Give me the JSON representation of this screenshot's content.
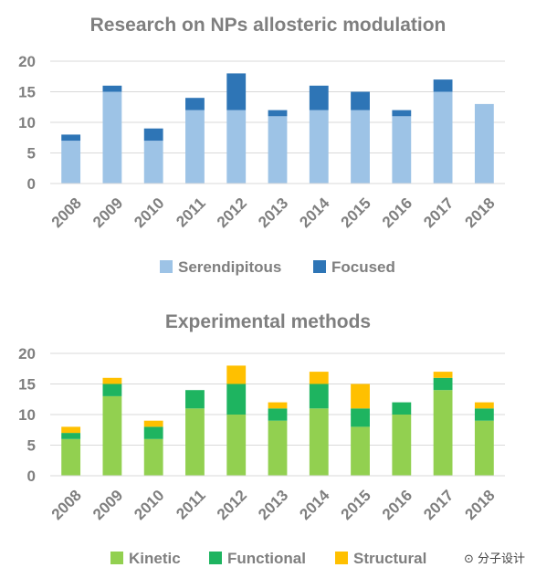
{
  "chart_data": [
    {
      "type": "bar",
      "stacked": true,
      "title": "Research on NPs allosteric modulation",
      "categories": [
        "2008",
        "2009",
        "2010",
        "2011",
        "2012",
        "2013",
        "2014",
        "2015",
        "2016",
        "2017",
        "2018"
      ],
      "series": [
        {
          "name": "Serendipitous",
          "color": "#9dc3e6",
          "values": [
            7,
            15,
            7,
            12,
            12,
            11,
            12,
            12,
            11,
            15,
            13
          ]
        },
        {
          "name": "Focused",
          "color": "#2e75b6",
          "values": [
            1,
            1,
            2,
            2,
            6,
            1,
            4,
            3,
            1,
            2,
            0
          ]
        }
      ],
      "ylim": [
        0,
        20
      ],
      "yticks": [
        0,
        5,
        10,
        15,
        20
      ],
      "grid": true,
      "legend": "bottom"
    },
    {
      "type": "bar",
      "stacked": true,
      "title": "Experimental methods",
      "categories": [
        "2008",
        "2009",
        "2010",
        "2011",
        "2012",
        "2013",
        "2014",
        "2015",
        "2016",
        "2017",
        "2018"
      ],
      "series": [
        {
          "name": "Kinetic",
          "color": "#92d050",
          "values": [
            6,
            13,
            6,
            11,
            10,
            9,
            11,
            8,
            10,
            14,
            9
          ]
        },
        {
          "name": "Functional",
          "color": "#1eb460",
          "values": [
            1,
            2,
            2,
            3,
            5,
            2,
            4,
            3,
            2,
            2,
            2
          ]
        },
        {
          "name": "Structural",
          "color": "#ffc000",
          "values": [
            1,
            1,
            1,
            0,
            3,
            1,
            2,
            4,
            0,
            1,
            1
          ]
        }
      ],
      "ylim": [
        0,
        20
      ],
      "yticks": [
        0,
        5,
        10,
        15,
        20
      ],
      "grid": true,
      "legend": "bottom"
    }
  ],
  "watermark": {
    "text": "分子设计"
  },
  "colors": {
    "axis_text": "#7f7f7f",
    "grid": "#d9d9d9"
  }
}
